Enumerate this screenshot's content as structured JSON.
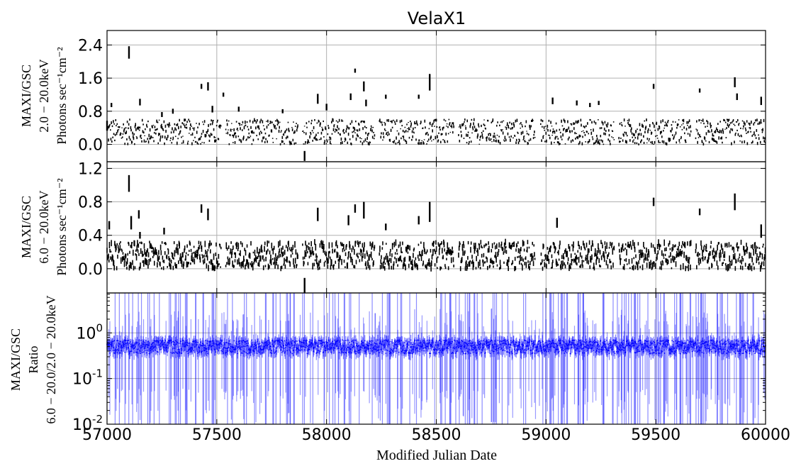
{
  "chart_data": [
    {
      "type": "scatter",
      "title": "VelaX1",
      "ylabel_lines": [
        "MAXI/GSC",
        "2.0 − 20.0keV",
        "Photons sec⁻¹cm⁻²"
      ],
      "yticks": [
        0.0,
        0.8,
        1.6,
        2.4
      ],
      "ytick_labels": [
        "0.0",
        "0.8",
        "1.6",
        "2.4"
      ],
      "ylim": [
        -0.42,
        2.75
      ],
      "xlim": [
        57000,
        60000
      ],
      "grid": true,
      "series": [
        {
          "marker_color": "#000000",
          "baseline_band": [
            0.0,
            0.6
          ],
          "points": [
            {
              "x": 57000,
              "y": 0.45,
              "err": 0.12
            },
            {
              "x": 57020,
              "y": 0.95,
              "err": 0.05
            },
            {
              "x": 57100,
              "y": 2.22,
              "err": 0.15
            },
            {
              "x": 57150,
              "y": 1.02,
              "err": 0.08
            },
            {
              "x": 57250,
              "y": 0.72,
              "err": 0.06
            },
            {
              "x": 57300,
              "y": 0.8,
              "err": 0.06
            },
            {
              "x": 57430,
              "y": 1.4,
              "err": 0.06
            },
            {
              "x": 57460,
              "y": 1.4,
              "err": 0.1
            },
            {
              "x": 57480,
              "y": 0.85,
              "err": 0.08
            },
            {
              "x": 57530,
              "y": 1.2,
              "err": 0.05
            },
            {
              "x": 57600,
              "y": 0.85,
              "err": 0.06
            },
            {
              "x": 57800,
              "y": 0.8,
              "err": 0.05
            },
            {
              "x": 57900,
              "y": -0.28,
              "err": 0.12
            },
            {
              "x": 57960,
              "y": 1.1,
              "err": 0.12
            },
            {
              "x": 58000,
              "y": 0.9,
              "err": 0.08
            },
            {
              "x": 58110,
              "y": 1.15,
              "err": 0.08
            },
            {
              "x": 58130,
              "y": 1.78,
              "err": 0.05
            },
            {
              "x": 58170,
              "y": 1.4,
              "err": 0.12
            },
            {
              "x": 58180,
              "y": 1.0,
              "err": 0.08
            },
            {
              "x": 58270,
              "y": 1.15,
              "err": 0.05
            },
            {
              "x": 58420,
              "y": 1.15,
              "err": 0.05
            },
            {
              "x": 58470,
              "y": 1.5,
              "err": 0.2
            },
            {
              "x": 59030,
              "y": 1.05,
              "err": 0.08
            },
            {
              "x": 59140,
              "y": 1.0,
              "err": 0.06
            },
            {
              "x": 59200,
              "y": 0.95,
              "err": 0.05
            },
            {
              "x": 59240,
              "y": 1.0,
              "err": 0.05
            },
            {
              "x": 59490,
              "y": 1.4,
              "err": 0.06
            },
            {
              "x": 59700,
              "y": 1.3,
              "err": 0.05
            },
            {
              "x": 59860,
              "y": 1.5,
              "err": 0.12
            },
            {
              "x": 59870,
              "y": 1.15,
              "err": 0.08
            },
            {
              "x": 59980,
              "y": 1.05,
              "err": 0.1
            }
          ]
        }
      ]
    },
    {
      "type": "scatter",
      "ylabel_lines": [
        "MAXI/GSC",
        "6.0 − 20.0keV",
        "Photons sec⁻¹cm⁻²"
      ],
      "yticks": [
        0.0,
        0.4,
        0.8,
        1.2
      ],
      "ytick_labels": [
        "0.0",
        "0.4",
        "0.8",
        "1.2"
      ],
      "ylim": [
        -0.29,
        1.28
      ],
      "xlim": [
        57000,
        60000
      ],
      "grid": true,
      "series": [
        {
          "marker_color": "#000000",
          "baseline_band": [
            0.0,
            0.32
          ],
          "points": [
            {
              "x": 57010,
              "y": 0.52,
              "err": 0.05
            },
            {
              "x": 57100,
              "y": 1.02,
              "err": 0.1
            },
            {
              "x": 57110,
              "y": 0.55,
              "err": 0.08
            },
            {
              "x": 57145,
              "y": 0.65,
              "err": 0.05
            },
            {
              "x": 57150,
              "y": 0.4,
              "err": 0.04
            },
            {
              "x": 57260,
              "y": 0.45,
              "err": 0.04
            },
            {
              "x": 57430,
              "y": 0.72,
              "err": 0.05
            },
            {
              "x": 57460,
              "y": 0.65,
              "err": 0.07
            },
            {
              "x": 57900,
              "y": -0.2,
              "err": 0.09
            },
            {
              "x": 57960,
              "y": 0.65,
              "err": 0.08
            },
            {
              "x": 58100,
              "y": 0.58,
              "err": 0.06
            },
            {
              "x": 58130,
              "y": 0.72,
              "err": 0.05
            },
            {
              "x": 58170,
              "y": 0.7,
              "err": 0.1
            },
            {
              "x": 58270,
              "y": 0.5,
              "err": 0.04
            },
            {
              "x": 58420,
              "y": 0.58,
              "err": 0.05
            },
            {
              "x": 58470,
              "y": 0.68,
              "err": 0.12
            },
            {
              "x": 59050,
              "y": 0.55,
              "err": 0.06
            },
            {
              "x": 59490,
              "y": 0.8,
              "err": 0.05
            },
            {
              "x": 59700,
              "y": 0.68,
              "err": 0.04
            },
            {
              "x": 59860,
              "y": 0.8,
              "err": 0.1
            },
            {
              "x": 59980,
              "y": 0.45,
              "err": 0.08
            }
          ]
        }
      ]
    },
    {
      "type": "scatter",
      "ylabel_lines": [
        "MAXI/GSC",
        "Ratio",
        "6.0 − 20.0/2.0 − 20.0keV"
      ],
      "yscale": "log",
      "yticks": [
        0.01,
        0.1,
        1.0
      ],
      "ylim": [
        0.01,
        7.5
      ],
      "xlim": [
        57000,
        60000
      ],
      "grid": true,
      "xlabel": "Modified Julian Date",
      "xticks": [
        57000,
        57500,
        58000,
        58500,
        59000,
        59500,
        60000
      ],
      "xtick_labels": [
        "57000",
        "57500",
        "58000",
        "58500",
        "59000",
        "59500",
        "60000"
      ],
      "series": [
        {
          "marker_color": "#0000ff",
          "typical_ratio": 0.5,
          "typical_range": [
            0.35,
            0.7
          ],
          "errorbar_range": [
            0.01,
            7.5
          ]
        }
      ]
    }
  ]
}
